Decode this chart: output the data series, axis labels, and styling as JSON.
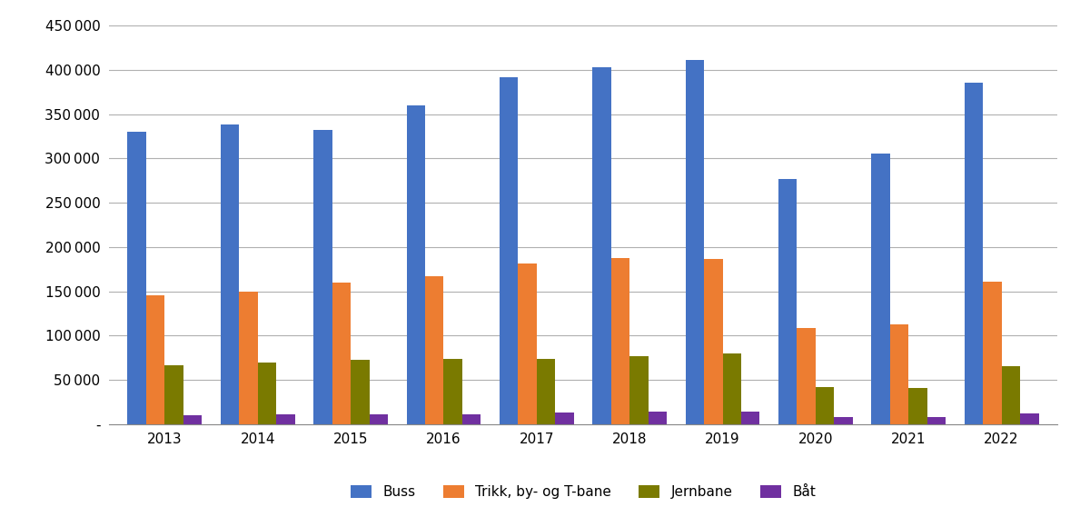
{
  "years": [
    2013,
    2014,
    2015,
    2016,
    2017,
    2018,
    2019,
    2020,
    2021,
    2022
  ],
  "buss": [
    330000,
    338000,
    332000,
    360000,
    392000,
    403000,
    411000,
    277000,
    306000,
    386000
  ],
  "trikk": [
    145000,
    150000,
    160000,
    167000,
    181000,
    188000,
    187000,
    108000,
    113000,
    161000
  ],
  "jernbane": [
    66000,
    69000,
    73000,
    74000,
    74000,
    77000,
    80000,
    42000,
    41000,
    65000
  ],
  "bat": [
    10000,
    11000,
    11000,
    11000,
    13000,
    14000,
    14000,
    8000,
    8000,
    12000
  ],
  "colors": {
    "buss": "#4472C4",
    "trikk": "#ED7D31",
    "jernbane": "#7A7A00",
    "bat": "#7030A0"
  },
  "legend_labels": [
    "Buss",
    "Trikk, by- og T-bane",
    "Jernbane",
    "Båt"
  ],
  "ylim": [
    0,
    450000
  ],
  "yticks": [
    0,
    50000,
    100000,
    150000,
    200000,
    250000,
    300000,
    350000,
    400000,
    450000
  ],
  "background_color": "#FFFFFF",
  "grid_color": "#B0B0B0"
}
